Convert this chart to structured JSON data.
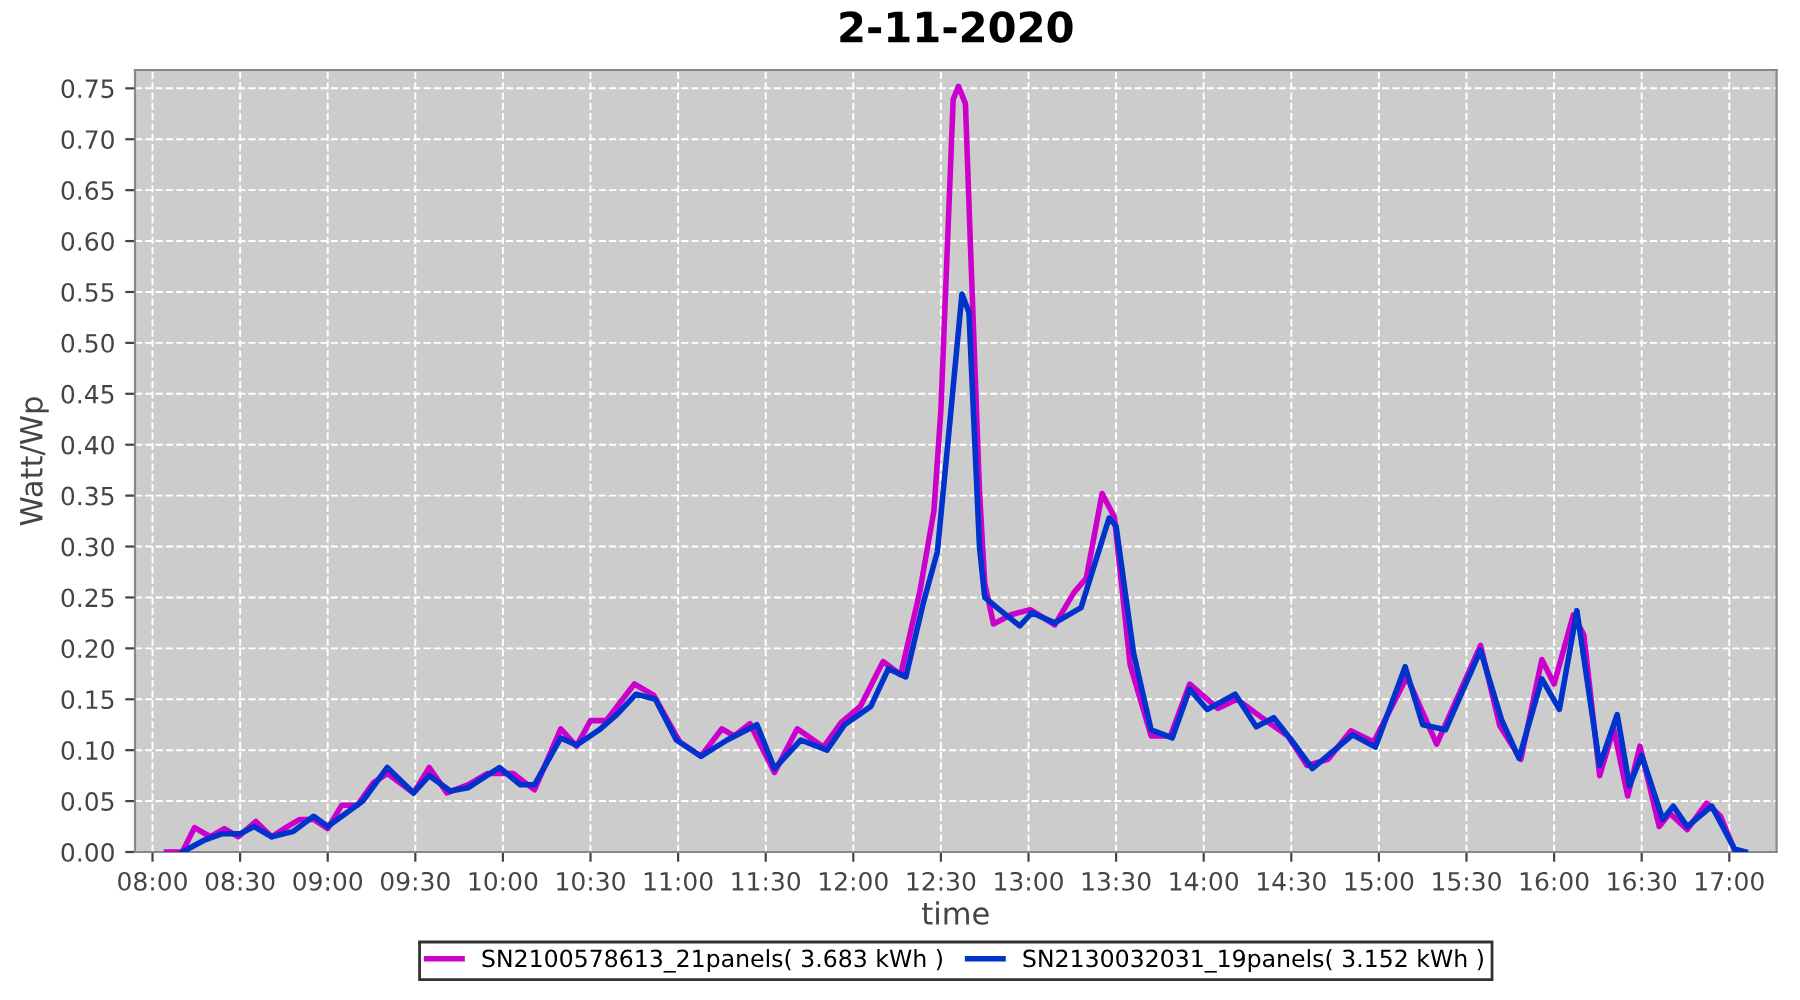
{
  "chart_data": {
    "type": "line",
    "title": "2-11-2020",
    "xlabel": "time",
    "ylabel": "Watt/Wp",
    "legend": "bottom",
    "grid": true,
    "marker": "none",
    "line_style": "solid",
    "xlim": [
      7.9,
      17.27
    ],
    "ylim": [
      0,
      0.768
    ],
    "xticks": [
      {
        "value": 8,
        "label": "08:00"
      },
      {
        "value": 8.5,
        "label": "08:30"
      },
      {
        "value": 9,
        "label": "09:00"
      },
      {
        "value": 9.5,
        "label": "09:30"
      },
      {
        "value": 10,
        "label": "10:00"
      },
      {
        "value": 10.5,
        "label": "10:30"
      },
      {
        "value": 11,
        "label": "11:00"
      },
      {
        "value": 11.5,
        "label": "11:30"
      },
      {
        "value": 12,
        "label": "12:00"
      },
      {
        "value": 12.5,
        "label": "12:30"
      },
      {
        "value": 13,
        "label": "13:00"
      },
      {
        "value": 13.5,
        "label": "13:30"
      },
      {
        "value": 14,
        "label": "14:00"
      },
      {
        "value": 14.5,
        "label": "14:30"
      },
      {
        "value": 15,
        "label": "15:00"
      },
      {
        "value": 15.5,
        "label": "15:30"
      },
      {
        "value": 16,
        "label": "16:00"
      },
      {
        "value": 16.5,
        "label": "16:30"
      },
      {
        "value": 17,
        "label": "17:00"
      }
    ],
    "yticks": [
      {
        "value": 0,
        "label": "0.00"
      },
      {
        "value": 0.05,
        "label": "0.05"
      },
      {
        "value": 0.1,
        "label": "0.10"
      },
      {
        "value": 0.15,
        "label": "0.15"
      },
      {
        "value": 0.2,
        "label": "0.20"
      },
      {
        "value": 0.25,
        "label": "0.25"
      },
      {
        "value": 0.3,
        "label": "0.30"
      },
      {
        "value": 0.35,
        "label": "0.35"
      },
      {
        "value": 0.4,
        "label": "0.40"
      },
      {
        "value": 0.45,
        "label": "0.45"
      },
      {
        "value": 0.5,
        "label": "0.50"
      },
      {
        "value": 0.55,
        "label": "0.55"
      },
      {
        "value": 0.6,
        "label": "0.60"
      },
      {
        "value": 0.65,
        "label": "0.65"
      },
      {
        "value": 0.7,
        "label": "0.70"
      },
      {
        "value": 0.75,
        "label": "0.75"
      }
    ],
    "series": [
      {
        "name": "SN2100578613_21panels( 3.683 kWh )",
        "color": "#cc00cc",
        "x": [
          8.08,
          8.17,
          8.24,
          8.33,
          8.41,
          8.49,
          8.59,
          8.68,
          8.77,
          8.84,
          8.92,
          9.0,
          9.08,
          9.17,
          9.26,
          9.34,
          9.49,
          9.58,
          9.68,
          9.8,
          9.91,
          10.06,
          10.18,
          10.33,
          10.42,
          10.5,
          10.59,
          10.75,
          10.86,
          11.01,
          11.13,
          11.25,
          11.32,
          11.41,
          11.55,
          11.68,
          11.83,
          11.93,
          12.04,
          12.17,
          12.27,
          12.38,
          12.46,
          12.5,
          12.57,
          12.6,
          12.64,
          12.67,
          12.72,
          12.75,
          12.8,
          12.9,
          13.01,
          13.15,
          13.26,
          13.33,
          13.42,
          13.49,
          13.58,
          13.7,
          13.81,
          13.92,
          14.08,
          14.19,
          14.34,
          14.48,
          14.59,
          14.71,
          14.84,
          14.97,
          15.16,
          15.33,
          15.48,
          15.58,
          15.69,
          15.81,
          15.93,
          16.0,
          16.11,
          16.17,
          16.26,
          16.34,
          16.42,
          16.49,
          16.6,
          16.66,
          16.76,
          16.87,
          16.95,
          17.03,
          17.09
        ],
        "values": [
          0.0,
          0.0,
          0.024,
          0.015,
          0.023,
          0.015,
          0.03,
          0.015,
          0.025,
          0.032,
          0.032,
          0.023,
          0.046,
          0.046,
          0.068,
          0.077,
          0.058,
          0.083,
          0.058,
          0.066,
          0.077,
          0.077,
          0.061,
          0.121,
          0.104,
          0.129,
          0.129,
          0.165,
          0.154,
          0.108,
          0.094,
          0.121,
          0.114,
          0.126,
          0.078,
          0.121,
          0.103,
          0.127,
          0.143,
          0.187,
          0.174,
          0.256,
          0.335,
          0.434,
          0.739,
          0.752,
          0.735,
          0.589,
          0.355,
          0.264,
          0.224,
          0.233,
          0.238,
          0.223,
          0.255,
          0.269,
          0.352,
          0.329,
          0.184,
          0.114,
          0.114,
          0.165,
          0.141,
          0.15,
          0.131,
          0.114,
          0.085,
          0.091,
          0.119,
          0.108,
          0.172,
          0.106,
          0.164,
          0.203,
          0.124,
          0.091,
          0.189,
          0.165,
          0.233,
          0.213,
          0.075,
          0.121,
          0.055,
          0.104,
          0.025,
          0.038,
          0.022,
          0.048,
          0.035,
          0.002,
          0.0
        ]
      },
      {
        "name": "SN2130032031_19panels( 3.152 kWh )",
        "color": "#0033cc",
        "x": [
          8.17,
          8.3,
          8.4,
          8.5,
          8.58,
          8.68,
          8.8,
          8.92,
          9.0,
          9.12,
          9.2,
          9.34,
          9.49,
          9.58,
          9.7,
          9.8,
          9.98,
          10.1,
          10.18,
          10.33,
          10.42,
          10.55,
          10.65,
          10.76,
          10.87,
          10.99,
          11.13,
          11.28,
          11.45,
          11.55,
          11.7,
          11.85,
          11.95,
          12.1,
          12.2,
          12.3,
          12.4,
          12.48,
          12.55,
          12.62,
          12.66,
          12.72,
          12.75,
          12.82,
          12.95,
          13.02,
          13.15,
          13.3,
          13.46,
          13.5,
          13.6,
          13.7,
          13.82,
          13.92,
          14.02,
          14.18,
          14.3,
          14.4,
          14.5,
          14.62,
          14.85,
          14.98,
          15.15,
          15.25,
          15.38,
          15.58,
          15.7,
          15.8,
          15.93,
          16.03,
          16.13,
          16.26,
          16.36,
          16.43,
          16.5,
          16.62,
          16.68,
          16.76,
          16.9,
          17.03,
          17.09
        ],
        "values": [
          0.0,
          0.012,
          0.018,
          0.018,
          0.025,
          0.015,
          0.02,
          0.035,
          0.025,
          0.04,
          0.05,
          0.083,
          0.058,
          0.075,
          0.06,
          0.063,
          0.083,
          0.066,
          0.066,
          0.112,
          0.105,
          0.12,
          0.135,
          0.155,
          0.15,
          0.11,
          0.094,
          0.11,
          0.125,
          0.082,
          0.11,
          0.1,
          0.125,
          0.143,
          0.18,
          0.172,
          0.245,
          0.295,
          0.42,
          0.548,
          0.53,
          0.3,
          0.25,
          0.24,
          0.222,
          0.235,
          0.225,
          0.24,
          0.328,
          0.32,
          0.195,
          0.12,
          0.112,
          0.16,
          0.14,
          0.155,
          0.123,
          0.132,
          0.11,
          0.082,
          0.115,
          0.103,
          0.182,
          0.125,
          0.12,
          0.198,
          0.13,
          0.092,
          0.17,
          0.14,
          0.237,
          0.085,
          0.135,
          0.065,
          0.095,
          0.032,
          0.045,
          0.025,
          0.045,
          0.003,
          0.0
        ]
      }
    ]
  }
}
